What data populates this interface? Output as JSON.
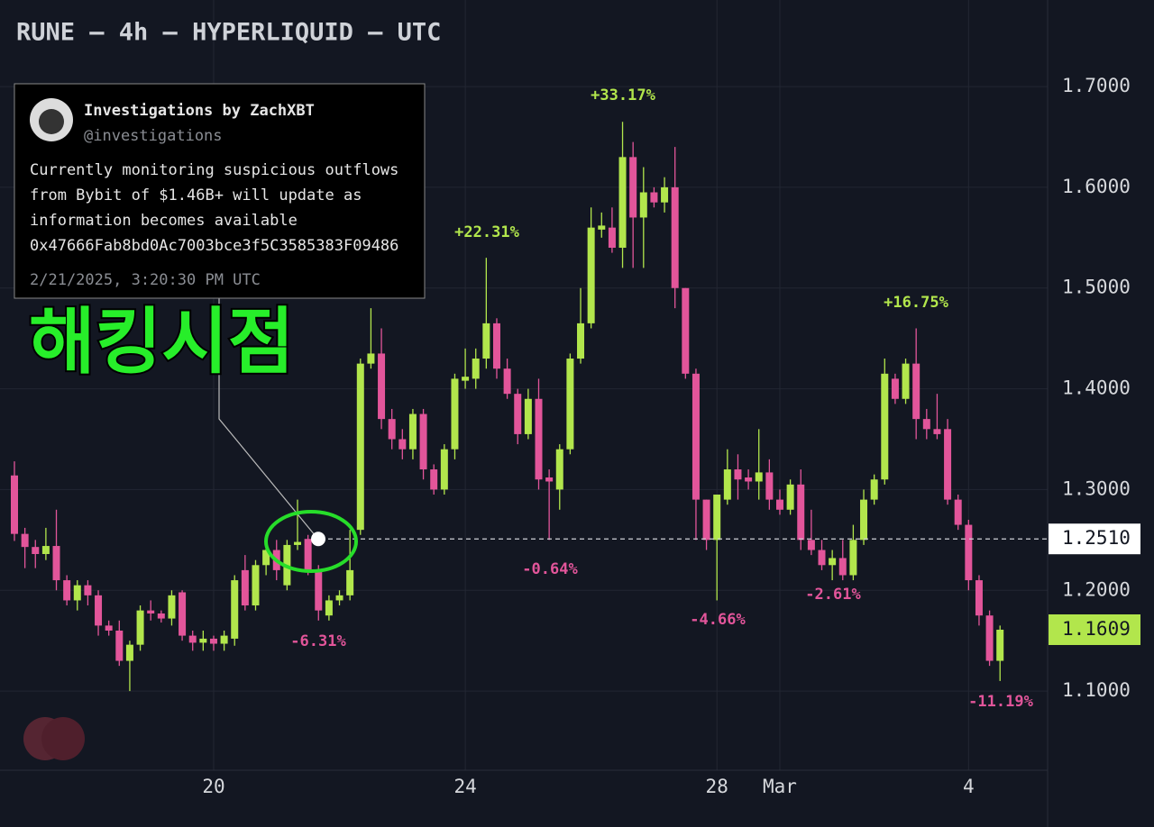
{
  "chart_data": {
    "type": "candlestick",
    "title": "RUNE — 4h — HYPERLIQUID — UTC",
    "categories": [
      null,
      null,
      null,
      null,
      null,
      null,
      null,
      null,
      null,
      null,
      null,
      null,
      null,
      null,
      null,
      null,
      null,
      null,
      null,
      "20",
      null,
      null,
      null,
      null,
      null,
      null,
      null,
      null,
      null,
      null,
      null,
      null,
      null,
      null,
      null,
      null,
      null,
      null,
      null,
      null,
      null,
      null,
      null,
      "24",
      null,
      null,
      null,
      null,
      null,
      null,
      null,
      null,
      null,
      null,
      null,
      null,
      null,
      null,
      null,
      null,
      null,
      null,
      null,
      null,
      null,
      null,
      null,
      "28",
      null,
      null,
      null,
      null,
      null,
      "Mar",
      null,
      null,
      null,
      null,
      null,
      null,
      null,
      null,
      null,
      null,
      null,
      null,
      null,
      null,
      null,
      null,
      null,
      "4",
      null,
      null,
      null
    ],
    "open": [
      1.314,
      1.256,
      1.243,
      1.236,
      1.244,
      1.21,
      1.19,
      1.205,
      1.195,
      1.165,
      1.16,
      1.13,
      1.146,
      1.18,
      1.177,
      1.172,
      1.198,
      1.155,
      1.148,
      1.152,
      1.147,
      1.152,
      1.22,
      1.185,
      1.225,
      1.24,
      1.205,
      1.245,
      1.251,
      1.22,
      1.175,
      1.19,
      1.195,
      1.26,
      1.425,
      1.435,
      1.37,
      1.35,
      1.34,
      1.375,
      1.32,
      1.3,
      1.34,
      1.408,
      1.41,
      1.43,
      1.465,
      1.42,
      1.395,
      1.355,
      1.39,
      1.312,
      1.3,
      1.34,
      1.43,
      1.465,
      1.558,
      1.56,
      1.54,
      1.63,
      1.57,
      1.595,
      1.585,
      1.6,
      1.5,
      1.415,
      1.29,
      1.25,
      1.29,
      1.32,
      1.312,
      1.308,
      1.317,
      1.29,
      1.28,
      1.305,
      1.25,
      1.24,
      1.225,
      1.232,
      1.215,
      1.25,
      1.29,
      1.31,
      1.41,
      1.39,
      1.425,
      1.37,
      1.36,
      1.36,
      1.29,
      1.265,
      1.21,
      1.175,
      1.13
    ],
    "high": [
      1.328,
      1.262,
      1.25,
      1.262,
      1.28,
      1.215,
      1.21,
      1.21,
      1.2,
      1.17,
      1.17,
      1.15,
      1.185,
      1.19,
      1.18,
      1.2,
      1.2,
      1.16,
      1.16,
      1.155,
      1.16,
      1.215,
      1.235,
      1.23,
      1.25,
      1.25,
      1.25,
      1.29,
      1.255,
      1.225,
      1.195,
      1.2,
      1.26,
      1.43,
      1.48,
      1.46,
      1.38,
      1.36,
      1.38,
      1.38,
      1.325,
      1.345,
      1.415,
      1.44,
      1.44,
      1.53,
      1.47,
      1.43,
      1.4,
      1.4,
      1.41,
      1.32,
      1.345,
      1.435,
      1.5,
      1.58,
      1.575,
      1.58,
      1.665,
      1.645,
      1.62,
      1.6,
      1.61,
      1.64,
      1.5,
      1.42,
      1.29,
      1.295,
      1.34,
      1.335,
      1.32,
      1.36,
      1.33,
      1.3,
      1.31,
      1.32,
      1.28,
      1.25,
      1.24,
      1.25,
      1.265,
      1.3,
      1.315,
      1.43,
      1.415,
      1.43,
      1.46,
      1.38,
      1.395,
      1.37,
      1.295,
      1.27,
      1.215,
      1.18,
      1.165
    ],
    "low": [
      1.249,
      1.222,
      1.222,
      1.23,
      1.2,
      1.185,
      1.18,
      1.185,
      1.155,
      1.155,
      1.125,
      1.1,
      1.14,
      1.17,
      1.168,
      1.165,
      1.15,
      1.14,
      1.14,
      1.14,
      1.14,
      1.145,
      1.18,
      1.18,
      1.215,
      1.21,
      1.2,
      1.24,
      1.215,
      1.17,
      1.17,
      1.185,
      1.19,
      1.255,
      1.42,
      1.36,
      1.34,
      1.33,
      1.33,
      1.31,
      1.295,
      1.295,
      1.33,
      1.4,
      1.4,
      1.42,
      1.41,
      1.39,
      1.345,
      1.35,
      1.3,
      1.25,
      1.28,
      1.335,
      1.425,
      1.46,
      1.55,
      1.535,
      1.52,
      1.52,
      1.52,
      1.58,
      1.575,
      1.48,
      1.41,
      1.25,
      1.24,
      1.19,
      1.285,
      1.29,
      1.3,
      1.29,
      1.28,
      1.275,
      1.275,
      1.24,
      1.235,
      1.22,
      1.21,
      1.21,
      1.21,
      1.245,
      1.285,
      1.305,
      1.385,
      1.385,
      1.35,
      1.35,
      1.35,
      1.285,
      1.26,
      1.2,
      1.165,
      1.125,
      1.11
    ],
    "close": [
      1.256,
      1.243,
      1.236,
      1.244,
      1.21,
      1.19,
      1.205,
      1.195,
      1.165,
      1.16,
      1.13,
      1.146,
      1.18,
      1.177,
      1.172,
      1.195,
      1.155,
      1.148,
      1.152,
      1.147,
      1.155,
      1.21,
      1.185,
      1.225,
      1.24,
      1.22,
      1.245,
      1.248,
      1.22,
      1.18,
      1.19,
      1.195,
      1.22,
      1.425,
      1.435,
      1.37,
      1.35,
      1.34,
      1.375,
      1.32,
      1.3,
      1.34,
      1.41,
      1.412,
      1.43,
      1.465,
      1.42,
      1.395,
      1.355,
      1.39,
      1.31,
      1.308,
      1.34,
      1.43,
      1.465,
      1.56,
      1.562,
      1.54,
      1.63,
      1.57,
      1.595,
      1.585,
      1.6,
      1.5,
      1.415,
      1.29,
      1.25,
      1.295,
      1.32,
      1.31,
      1.308,
      1.317,
      1.29,
      1.28,
      1.305,
      1.25,
      1.24,
      1.225,
      1.232,
      1.215,
      1.25,
      1.29,
      1.31,
      1.415,
      1.39,
      1.425,
      1.37,
      1.36,
      1.355,
      1.29,
      1.265,
      1.21,
      1.175,
      1.13,
      1.1609
    ],
    "up_color": "#b2e64c",
    "down_color": "#e2559a",
    "ylim": [
      1.0214,
      1.7859
    ],
    "yticks": [
      {
        "value": 1.1,
        "label": "1.1000"
      },
      {
        "value": 1.2,
        "label": "1.2000"
      },
      {
        "value": 1.3,
        "label": "1.3000"
      },
      {
        "value": 1.4,
        "label": "1.4000"
      },
      {
        "value": 1.5,
        "label": "1.5000"
      },
      {
        "value": 1.6,
        "label": "1.6000"
      },
      {
        "value": 1.7,
        "label": "1.7000"
      }
    ],
    "grid": true,
    "hack_price": {
      "value": 1.251,
      "label": "1.2510"
    },
    "last_price": {
      "value": 1.1609,
      "label": "1.1609"
    },
    "annotations": [
      {
        "text": "+33.17%",
        "color": "#b2e64c"
      },
      {
        "text": "+22.31%",
        "color": "#b2e64c"
      },
      {
        "text": "+16.75%",
        "color": "#b2e64c"
      },
      {
        "text": "-6.31%",
        "color": "#e2559a"
      },
      {
        "text": "-0.64%",
        "color": "#e2559a"
      },
      {
        "text": "-4.66%",
        "color": "#e2559a"
      },
      {
        "text": "-2.61%",
        "color": "#e2559a"
      },
      {
        "text": "-11.19%",
        "color": "#e2559a"
      }
    ],
    "highlight_label": "해킹시점",
    "callout": {
      "author": "Investigations by ZachXBT",
      "handle": "@investigations",
      "lines": [
        "Currently monitoring suspicious outflows",
        "from Bybit of $1.46B+ will update as",
        "information becomes available",
        "0x47666Fab8bd0Ac7003bce3f5C3585383F09486"
      ],
      "timestamp": "2/21/2025, 3:20:30 PM UTC"
    }
  }
}
